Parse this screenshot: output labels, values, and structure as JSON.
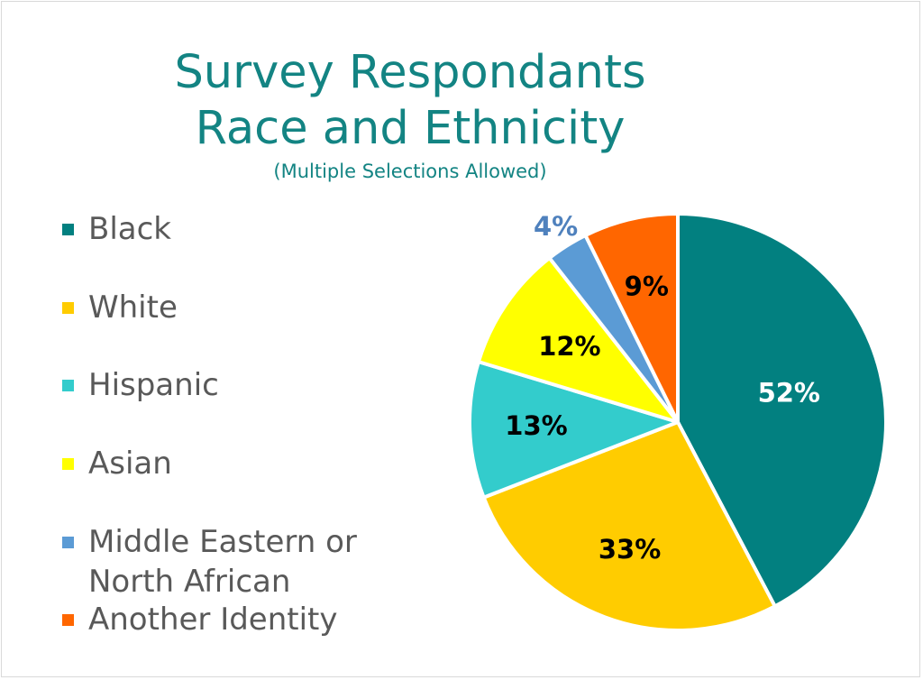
{
  "chart_data": {
    "type": "pie",
    "title_lines": [
      "Survey Respondants",
      "Race and Ethnicity"
    ],
    "subtitle": "(Multiple Selections Allowed)",
    "legend_position": "left",
    "series": [
      {
        "name": "Black",
        "value": 52,
        "label": "52%",
        "color": "#028080",
        "label_color": "#ffffff"
      },
      {
        "name": "White",
        "value": 33,
        "label": "33%",
        "color": "#FFCC00",
        "label_color": "#000000"
      },
      {
        "name": "Hispanic",
        "value": 13,
        "label": "13%",
        "color": "#33CCCC",
        "label_color": "#000000"
      },
      {
        "name": "Asian",
        "value": 12,
        "label": "12%",
        "color": "#FFFF00",
        "label_color": "#000000"
      },
      {
        "name": "Middle Eastern or\nNorth African",
        "value": 4,
        "label": "4%",
        "color": "#5B9BD5",
        "label_color": "#4F81BD"
      },
      {
        "name": "Another Identity",
        "value": 9,
        "label": "9%",
        "color": "#FF6600",
        "label_color": "#000000"
      }
    ]
  }
}
